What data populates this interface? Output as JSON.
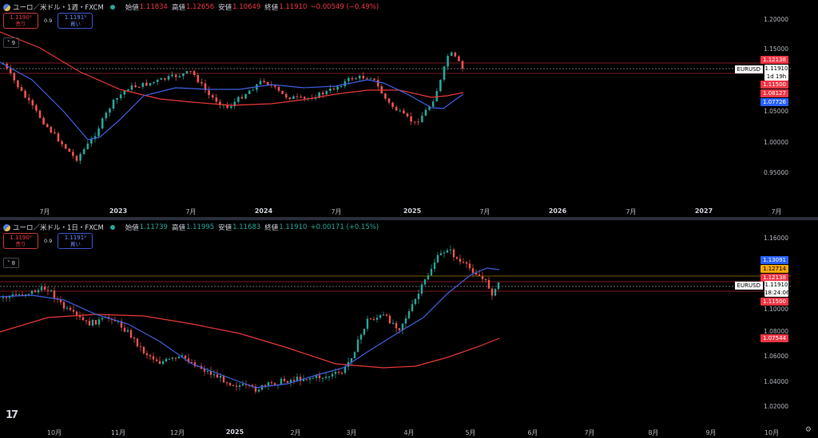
{
  "top": {
    "symbol_title": "ユーロ／米ドル・1週・FXCM",
    "open_label": "始値",
    "open": "1.11834",
    "high_label": "高値",
    "high": "1.12656",
    "low_label": "安値",
    "low": "1.10649",
    "close_label": "終値",
    "close": "1.11910",
    "change": "−0.00549 (−0.49%)",
    "change_color": "#f23645",
    "sell_price": "1.1190⁹",
    "sell_label": "売り",
    "spread": "0.9",
    "buy_price": "1.1191⁹",
    "buy_label": "買い",
    "indicator_count": "9",
    "symbol_tag": "EURUSD",
    "price_tags": {
      "t1": "1.12138",
      "cur": "1.11910",
      "cur_sub": "1d 19h",
      "t2": "1.11500",
      "t3": "1.08127",
      "t4": "1.07726"
    },
    "y_labels": [
      "1.20000",
      "1.15000",
      "1.05000",
      "1.00000",
      "0.95000"
    ],
    "x_labels": [
      "7月",
      "2023",
      "7月",
      "2024",
      "7月",
      "2025",
      "7月",
      "2026",
      "7月",
      "2027",
      "7月"
    ]
  },
  "bottom": {
    "symbol_title": "ユーロ／米ドル・1日・FXCM",
    "open_label": "始値",
    "open": "1.11739",
    "high_label": "高値",
    "high": "1.11995",
    "low_label": "安値",
    "low": "1.11683",
    "close_label": "終値",
    "close": "1.11910",
    "change": "+0.00171 (+0.15%)",
    "change_color": "#26a69a",
    "sell_price": "1.1190⁹",
    "sell_label": "売り",
    "spread": "0.9",
    "buy_price": "1.1191⁹",
    "buy_label": "買い",
    "indicator_count": "8",
    "symbol_tag": "EURUSD",
    "price_tags": {
      "t1": "1.13091",
      "t2": "1.12714",
      "t3": "1.12138",
      "cur": "1.11910",
      "cur_sub": "18:24:06",
      "t4": "1.11500",
      "t5": "1.07544"
    },
    "y_labels": [
      "1.16000",
      "1.10000",
      "1.08000",
      "1.06000",
      "1.04000",
      "1.02000"
    ],
    "x_labels": [
      "10月",
      "11月",
      "12月",
      "2025",
      "2月",
      "3月",
      "4月",
      "5月",
      "6月",
      "7月",
      "8月",
      "9月",
      "10月"
    ]
  },
  "colors": {
    "bull": "#26a69a",
    "bear": "#ef5350",
    "ma_fast": "#3f5fe0",
    "ma_slow": "#e53935",
    "hline_red": "#f23645",
    "hline_orange": "#f7a600"
  },
  "icons": {
    "logo": "tradingview-logo-icon",
    "settings": "gear-icon",
    "symbol": "eurusd-flag-icon"
  }
}
